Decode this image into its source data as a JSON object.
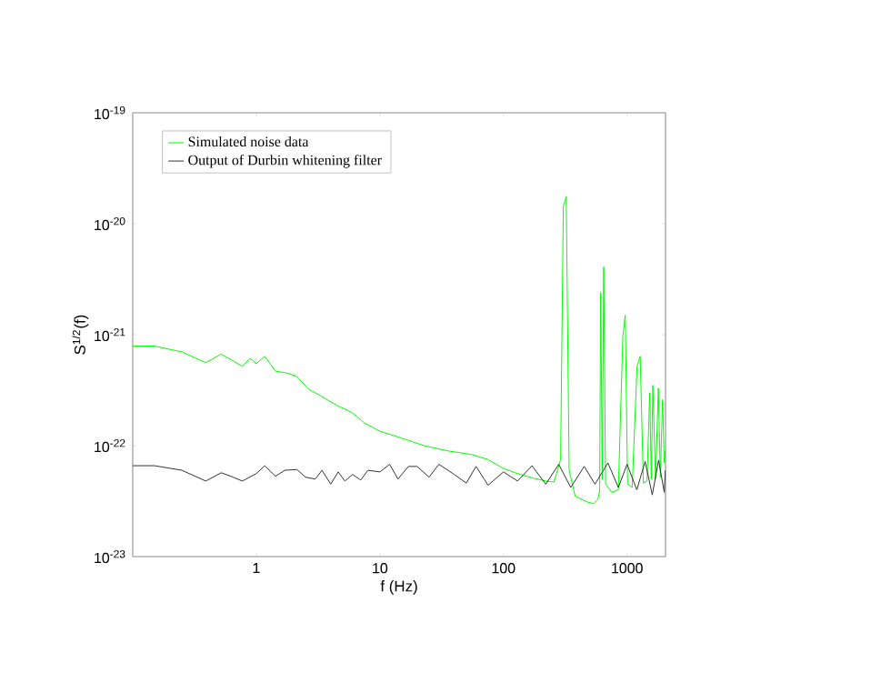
{
  "chart_data": {
    "type": "line",
    "xlabel": "f (Hz)",
    "ylabel": "S$^{1/2}$(f)",
    "log": "xy",
    "legend": "top left",
    "xlim": [
      0.1,
      2048
    ],
    "ylim": [
      1e-23,
      1e-19
    ],
    "xticks": [
      1,
      10,
      100,
      1000
    ],
    "yticks": [
      {
        "value": 1e-23,
        "label": "10$^{-23}$"
      },
      {
        "value": 1e-22,
        "label": "10$^{-22}$"
      },
      {
        "value": 1e-21,
        "label": "10$^{-21}$"
      },
      {
        "value": 1e-20,
        "label": "10$^{-20}$"
      },
      {
        "value": 1e-19,
        "label": "10$^{-19}$"
      }
    ],
    "series": [
      {
        "name": "Simulated noise data",
        "color": "#00ff00",
        "x": [
          0.1,
          0.15,
          0.25,
          0.39,
          0.52,
          0.65,
          0.77,
          0.89,
          1.0,
          1.17,
          1.43,
          1.8,
          2.13,
          2.67,
          3.0,
          3.74,
          4.5,
          5.9,
          7.5,
          10,
          14,
          22.8,
          35,
          56,
          75,
          98,
          130,
          174,
          220,
          256,
          290,
          305,
          322,
          340,
          380,
          426,
          480,
          535,
          580,
          600,
          612,
          630,
          647,
          670,
          752,
          850,
          925,
          967,
          1010,
          1100,
          1205,
          1277,
          1355,
          1450,
          1526,
          1570,
          1616,
          1700,
          1793,
          1860,
          1937,
          2000,
          2040
        ],
        "values": [
          7.9e-22,
          7.9e-22,
          7e-22,
          5.6e-22,
          6.7e-22,
          5.8e-22,
          5.2e-22,
          6.1e-22,
          5.5e-22,
          6.4e-22,
          4.7e-22,
          4.5e-22,
          4.2e-22,
          3.2e-22,
          3e-22,
          2.6e-22,
          2.3e-22,
          2e-22,
          1.6e-22,
          1.35e-22,
          1.2e-22,
          1e-22,
          9e-23,
          8.3e-23,
          7.5e-23,
          6.3e-23,
          5.6e-23,
          5.1e-23,
          4.8e-23,
          4.7e-23,
          7.5e-23,
          1.45e-20,
          1.75e-20,
          6e-23,
          3.5e-23,
          3.3e-23,
          3.1e-23,
          3e-23,
          3.3e-23,
          3.9e-23,
          2.4e-21,
          5e-23,
          4.1e-21,
          4.5e-23,
          3.8e-23,
          4e-23,
          9.7e-22,
          1.5e-21,
          4.5e-23,
          4.2e-23,
          5.2e-22,
          6.4e-22,
          4.6e-23,
          4.8e-23,
          3e-22,
          5e-23,
          3.5e-22,
          5e-23,
          3.3e-22,
          5.2e-23,
          2.6e-22,
          7e-23,
          9e-23
        ]
      },
      {
        "name": "Output of Durbin whitening filter",
        "color": "#333333",
        "x": [
          0.1,
          0.15,
          0.25,
          0.39,
          0.52,
          0.65,
          0.77,
          1.0,
          1.17,
          1.43,
          1.7,
          2.13,
          2.5,
          3.0,
          3.4,
          4.0,
          4.6,
          5.2,
          6,
          7,
          8,
          10,
          12,
          14,
          17,
          20,
          25,
          30,
          40,
          50,
          60,
          75,
          100,
          130,
          170,
          220,
          280,
          350,
          450,
          550,
          700,
          850,
          1000,
          1200,
          1400,
          1600,
          1800,
          2000,
          2040
        ],
        "values": [
          6.6e-23,
          6.6e-23,
          6e-23,
          4.8e-23,
          5.7e-23,
          5.2e-23,
          4.8e-23,
          5.6e-23,
          6.6e-23,
          5.3e-23,
          6e-23,
          6.1e-23,
          5.2e-23,
          5e-23,
          6e-23,
          4.5e-23,
          5.8e-23,
          4.8e-23,
          5.5e-23,
          4.9e-23,
          6e-23,
          5.8e-23,
          6.8e-23,
          5e-23,
          6.5e-23,
          6.5e-23,
          5.2e-23,
          6.8e-23,
          5.5e-23,
          4.6e-23,
          6.5e-23,
          4.4e-23,
          5.8e-23,
          4.8e-23,
          6.6e-23,
          4.5e-23,
          6.8e-23,
          4.2e-23,
          6.5e-23,
          4.5e-23,
          7e-23,
          4.2e-23,
          6.8e-23,
          4e-23,
          7.2e-23,
          3.6e-23,
          7.4e-23,
          3.8e-23,
          6e-23
        ]
      }
    ]
  }
}
